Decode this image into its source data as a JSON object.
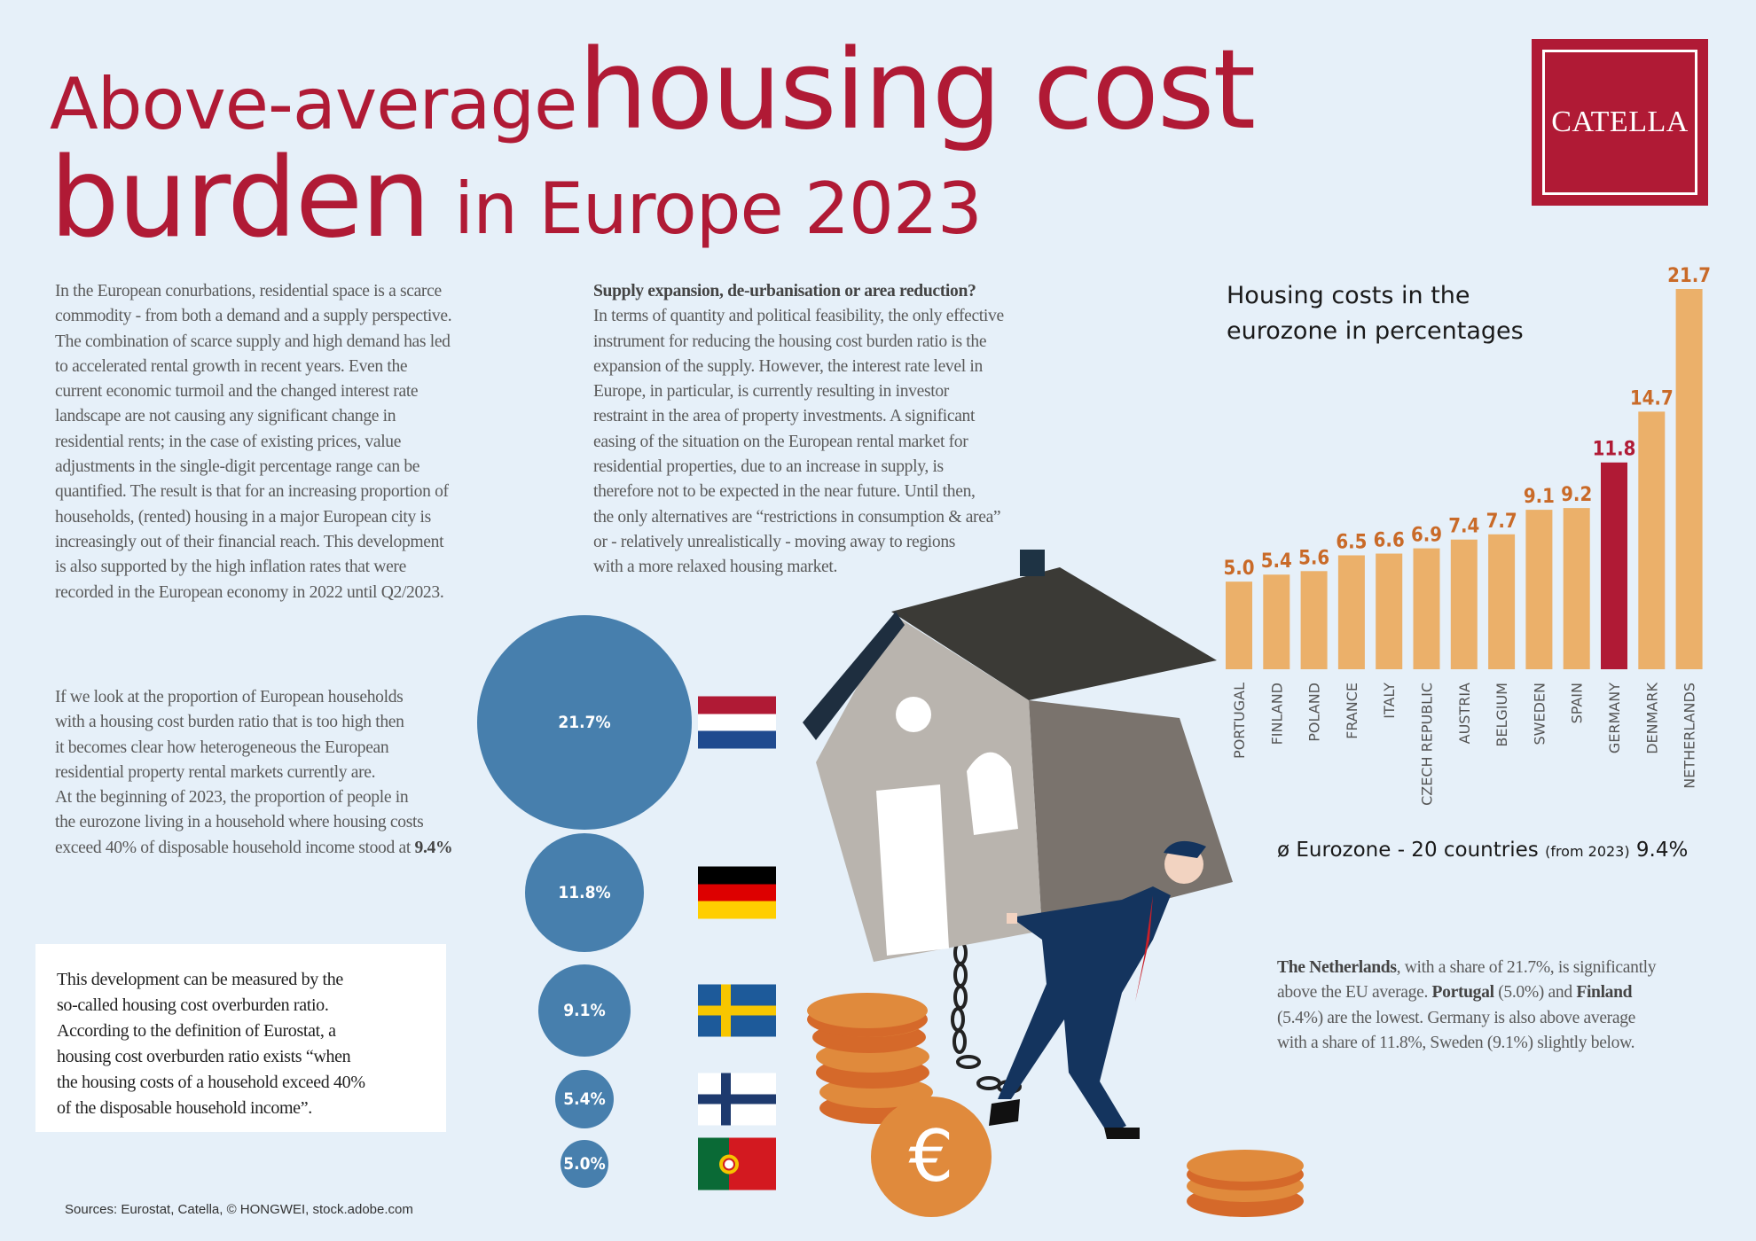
{
  "title": {
    "part1": "Above-average",
    "part2": "housing cost",
    "part3": "burden",
    "part4": "in Europe 2023"
  },
  "logo": {
    "text": "CATELLA"
  },
  "intro": {
    "lines": [
      "In the European conurbations, residential space is a scarce",
      "commodity - from both a demand and a supply perspective.",
      "The combination of scarce supply and high demand has led",
      "to accelerated rental growth in recent years. Even the",
      "current economic turmoil and the changed interest rate",
      "landscape are not causing any significant change in",
      "residential rents; in the case of existing prices, value",
      "adjustments in the single-digit percentage range can be",
      "quantified. The result is that for an increasing proportion of",
      "households, (rented) housing in a major European city is",
      "increasingly out of their financial reach. This development",
      "is also supported by the high inflation rates that were",
      "recorded in the European economy in 2022 until Q2/2023."
    ]
  },
  "supply": {
    "heading": "Supply expansion, de-urbanisation or area reduction?",
    "lines": [
      "In terms of quantity and political feasibility, the only effective",
      "instrument for reducing the housing cost burden ratio is the",
      "expansion of the supply. However, the interest rate level in",
      "Europe, in particular, is currently resulting in investor",
      "restraint in the area of property investments. A significant",
      "easing of the situation on the European rental market for",
      "residential properties, due to an increase in supply, is",
      "therefore not to be expected in the near future. Until then,",
      "the only alternatives are “restrictions in consumption & area”",
      "or - relatively unrealistically - moving away to regions",
      "with a more relaxed housing market."
    ]
  },
  "proportion": {
    "lines": [
      [
        {
          "t": "If we look at the proportion of European households"
        }
      ],
      [
        {
          "t": "with a housing cost burden ratio that is too high then"
        }
      ],
      [
        {
          "t": "it becomes clear how heterogeneous the European"
        }
      ],
      [
        {
          "t": "residential property rental markets currently are."
        }
      ],
      [
        {
          "t": "At the beginning of 2023, the proportion of people in"
        }
      ],
      [
        {
          "t": "the eurozone living in a household where housing costs"
        }
      ],
      [
        {
          "t": "exceed 40% of disposable household income stood at "
        },
        {
          "t": "9.4%",
          "b": true
        }
      ]
    ]
  },
  "definition_box": {
    "lines": [
      "This development can be measured by the",
      "so-called housing cost overburden ratio.",
      "According to the definition of Eurostat, a",
      "housing cost overburden ratio exists “when",
      "the housing costs of a household exceed 40%",
      "of the disposable household income”."
    ]
  },
  "bubbles": [
    {
      "label": "21.7%",
      "value": 21.7,
      "flag": "netherlands-flag"
    },
    {
      "label": "11.8%",
      "value": 11.8,
      "flag": "germany-flag"
    },
    {
      "label": "9.1%",
      "value": 9.1,
      "flag": "sweden-flag"
    },
    {
      "label": "5.4%",
      "value": 5.4,
      "flag": "finland-flag"
    },
    {
      "label": "5.0%",
      "value": 5.0,
      "flag": "portugal-flag"
    }
  ],
  "chart_data": {
    "type": "bar",
    "title": "Housing costs in the eurozone in percentages",
    "title_lines": [
      "Housing costs in the",
      "eurozone in percentages"
    ],
    "categories": [
      "PORTUGAL",
      "FINLAND",
      "POLAND",
      "FRANCE",
      "ITALY",
      "CZECH REPUBLIC",
      "AUSTRIA",
      "BELGIUM",
      "SWEDEN",
      "SPAIN",
      "GERMANY",
      "DENMARK",
      "NETHERLANDS"
    ],
    "values": [
      5.0,
      5.4,
      5.6,
      6.5,
      6.6,
      6.9,
      7.4,
      7.7,
      9.1,
      9.2,
      11.8,
      14.7,
      21.7
    ],
    "value_labels": [
      "5.0",
      "5.4",
      "5.6",
      "6.5",
      "6.6",
      "6.9",
      "7.4",
      "7.7",
      "9.1",
      "9.2",
      "11.8",
      "14.7",
      "21.7"
    ],
    "highlight": "GERMANY",
    "ylim": [
      0,
      21.7
    ],
    "grid": false,
    "colors": {
      "bar": "#ebb06a",
      "highlight": "#b01a35",
      "label": "#c96a28",
      "axis_label": "#555555"
    }
  },
  "eurozone": {
    "prefix": "ø Eurozone - 20 countries",
    "note": "(from 2023)",
    "value": "9.4%"
  },
  "summary": {
    "lines": [
      [
        {
          "t": "The Netherlands",
          "b": true
        },
        {
          "t": ", with a share of 21.7%, is significantly"
        }
      ],
      [
        {
          "t": "above the EU average. "
        },
        {
          "t": "Portugal",
          "b": true
        },
        {
          "t": " (5.0%) and "
        },
        {
          "t": "Finland",
          "b": true
        }
      ],
      [
        {
          "t": "(5.4%) are the lowest. Germany is also above average"
        }
      ],
      [
        {
          "t": "with a share of 11.8%, Sweden (9.1%) slightly below."
        }
      ]
    ]
  },
  "illustration": {
    "coin_symbol": "€"
  },
  "sources": "Sources: Eurostat, Catella, © HONGWEI, stock.adobe.com",
  "colors": {
    "background": "#e6f0f9",
    "brand_red": "#b01a35",
    "bubble": "#477fad",
    "coin": "#e08a3c"
  }
}
